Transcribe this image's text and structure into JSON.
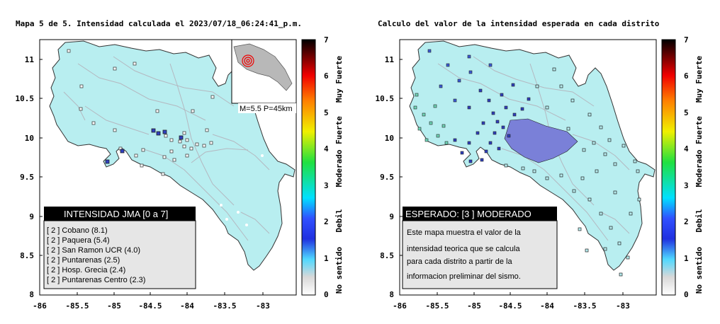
{
  "left_map": {
    "title": "Mapa 5 de 5. Intensidad calculada el 2023/07/18_06:24:41_p.m.",
    "x_ticks": [
      "-86",
      "-85.5",
      "-85",
      "-84.5",
      "-84",
      "-83.5",
      "-83"
    ],
    "y_ticks": [
      "11",
      "10.5",
      "10",
      "9.5",
      "9",
      "8.5",
      "8"
    ],
    "inset_label": "M=5.5 P=45km",
    "legend": {
      "title": "INTENSIDAD JMA [0 a 7]",
      "rows": [
        "[ 2 ]  Cobano (8.1)",
        "[ 2 ]  Paquera (5.4)",
        "[ 2 ]  San Ramon UCR (4.0)",
        "[ 2 ]  Puntarenas (2.5)",
        "[ 2 ]  Hosp. Grecia (2.4)",
        "[ 2 ]  Puntarenas Centro (2.3)"
      ]
    }
  },
  "right_map": {
    "title": "Calculo del valor de la intensidad esperada en cada distrito",
    "x_ticks": [
      "-86",
      "-85.5",
      "-85",
      "-84.5",
      "-84",
      "-83.5",
      "-83"
    ],
    "y_ticks": [
      "11",
      "10.5",
      "10",
      "9.5",
      "9",
      "8.5",
      "8"
    ],
    "legend": {
      "title": "ESPERADO: [3 ] MODERADO",
      "lines": [
        "Este mapa muestra el valor de la",
        "intensidad teorica que se calcula",
        "para cada distrito a partir de la",
        "informacion preliminar del sismo."
      ]
    }
  },
  "colorbar": {
    "ticks": [
      "7",
      "6",
      "5",
      "4",
      "3",
      "2",
      "1",
      "0"
    ],
    "labels": [
      "Muy Fuerte",
      "Fuerte",
      "Moderado",
      "Debil",
      "No sentido"
    ]
  },
  "colors": {
    "land": "#b8eef0",
    "rivers": "#b4b8c0",
    "station_dark_blue": "#2f3fbf",
    "district_blue": "#7a80d8",
    "district_green": "#6fd8b8"
  }
}
